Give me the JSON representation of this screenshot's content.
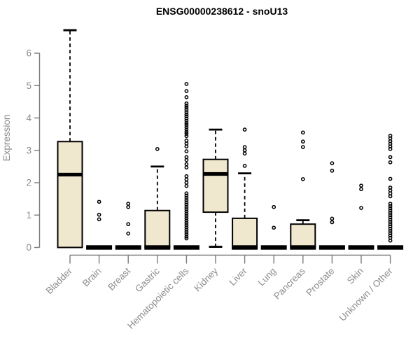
{
  "title": "ENSG00000238612 - snoU13",
  "colors": {
    "background": "#ffffff",
    "box_fill": "#efe8ce",
    "box_stroke": "#000000",
    "median": "#000000",
    "outlier": "#000000",
    "axis_line": "#7a7a7a",
    "tick_label": "#8c8c8c",
    "title_text": "#000000"
  },
  "chart_data": {
    "type": "boxplot",
    "title": "ENSG00000238612 - snoU13",
    "xlabel": "",
    "ylabel": "Expression",
    "ylim": [
      0,
      6.8
    ],
    "yticks": [
      0,
      1,
      2,
      3,
      4,
      5,
      6
    ],
    "grid": false,
    "legend_position": "none",
    "categories": [
      "Bladder",
      "Brain",
      "Breast",
      "Gastric",
      "Hematopoietic cells",
      "Kidney",
      "Liver",
      "Lung",
      "Pancreas",
      "Prostate",
      "Skin",
      "Unknown / Other"
    ],
    "boxes": [
      {
        "category": "Bladder",
        "low": 0,
        "q1": 0,
        "median": 2.25,
        "q3": 3.27,
        "high": 6.71,
        "outliers": []
      },
      {
        "category": "Brain",
        "low": 0,
        "q1": 0,
        "median": 0,
        "q3": 0,
        "high": 0,
        "outliers": [
          1.41,
          1.01,
          0.87
        ]
      },
      {
        "category": "Breast",
        "low": 0,
        "q1": 0,
        "median": 0,
        "q3": 0,
        "high": 0,
        "outliers": [
          1.35,
          1.25,
          0.72,
          0.43
        ]
      },
      {
        "category": "Gastric",
        "low": 0,
        "q1": 0,
        "median": 0,
        "q3": 1.14,
        "high": 2.5,
        "outliers": [
          3.04
        ]
      },
      {
        "category": "Hematopoietic cells",
        "low": 0,
        "q1": 0,
        "median": 0,
        "q3": 0,
        "high": 0,
        "outliers": [
          5.05,
          4.83,
          4.64,
          4.45,
          4.38,
          4.32,
          4.25,
          4.18,
          4.11,
          4.05,
          3.98,
          3.91,
          3.84,
          3.78,
          3.71,
          3.64,
          3.57,
          3.51,
          3.44,
          3.3,
          3.21,
          3.12,
          2.97,
          2.79,
          2.7,
          2.57,
          2.47,
          2.2,
          2.1,
          2.0,
          1.9,
          1.67,
          1.6,
          1.53,
          1.46,
          1.39,
          1.32,
          1.25,
          1.18,
          1.11,
          1.04,
          0.97,
          0.9,
          0.83,
          0.76,
          0.69,
          0.62,
          0.55,
          0.48,
          0.41,
          0.34,
          0.28
        ]
      },
      {
        "category": "Kidney",
        "low": 0.02,
        "q1": 1.09,
        "median": 2.27,
        "q3": 2.72,
        "high": 3.64,
        "outliers": []
      },
      {
        "category": "Liver",
        "low": 0,
        "q1": 0,
        "median": 0,
        "q3": 0.9,
        "high": 2.29,
        "outliers": [
          3.64,
          3.1,
          3.0,
          2.9,
          2.52
        ]
      },
      {
        "category": "Lung",
        "low": 0,
        "q1": 0,
        "median": 0,
        "q3": 0,
        "high": 0,
        "outliers": [
          1.25,
          0.61
        ]
      },
      {
        "category": "Pancreas",
        "low": 0,
        "q1": 0,
        "median": 0,
        "q3": 0.72,
        "high": 0.84,
        "outliers": [
          3.55,
          3.27,
          3.1,
          2.11
        ]
      },
      {
        "category": "Prostate",
        "low": 0,
        "q1": 0,
        "median": 0,
        "q3": 0,
        "high": 0,
        "outliers": [
          2.6,
          2.37,
          0.89,
          0.78
        ]
      },
      {
        "category": "Skin",
        "low": 0,
        "q1": 0,
        "median": 0,
        "q3": 0,
        "high": 0,
        "outliers": [
          1.91,
          1.8,
          1.22
        ]
      },
      {
        "category": "Unknown / Other",
        "low": 0,
        "q1": 0,
        "median": 0,
        "q3": 0,
        "high": 0,
        "outliers": [
          3.45,
          3.37,
          3.28,
          3.2,
          3.12,
          3.04,
          2.79,
          2.63,
          2.12,
          1.85,
          1.76,
          1.67,
          1.58,
          1.35,
          1.28,
          1.21,
          1.14,
          1.07,
          1.0,
          0.93,
          0.86,
          0.79,
          0.72,
          0.65,
          0.58,
          0.51,
          0.44,
          0.37,
          0.3,
          0.21
        ]
      }
    ]
  }
}
